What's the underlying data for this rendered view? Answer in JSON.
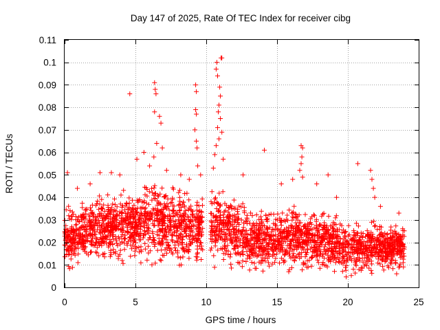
{
  "chart_data": {
    "type": "scatter",
    "title": "Day 147 of 2025, Rate Of TEC Index for receiver cibg",
    "xlabel": "GPS time / hours",
    "ylabel": "ROTI / TECUs",
    "xlim": [
      0,
      25
    ],
    "ylim": [
      0,
      0.11
    ],
    "xticks": [
      "0",
      "5",
      "10",
      "15",
      "20",
      "25"
    ],
    "yticks": [
      "0",
      "0.01",
      "0.02",
      "0.03",
      "0.04",
      "0.05",
      "0.06",
      "0.07",
      "0.08",
      "0.09",
      "0.1",
      "0.11"
    ],
    "grid": true,
    "marker": "+",
    "color": "#ff0000",
    "series": [
      {
        "name": "ROTI",
        "envelope_description": "dense band",
        "band": [
          {
            "x": 0.0,
            "low": 0.008,
            "high": 0.036
          },
          {
            "x": 1.0,
            "low": 0.008,
            "high": 0.038
          },
          {
            "x": 2.0,
            "low": 0.009,
            "high": 0.04
          },
          {
            "x": 3.0,
            "low": 0.01,
            "high": 0.042
          },
          {
            "x": 4.0,
            "low": 0.009,
            "high": 0.044
          },
          {
            "x": 5.0,
            "low": 0.01,
            "high": 0.045
          },
          {
            "x": 6.0,
            "low": 0.01,
            "high": 0.048
          },
          {
            "x": 7.0,
            "low": 0.009,
            "high": 0.046
          },
          {
            "x": 8.0,
            "low": 0.009,
            "high": 0.044
          },
          {
            "x": 9.0,
            "low": 0.008,
            "high": 0.042
          },
          {
            "x": 9.8,
            "low": 0.01,
            "high": 0.044
          },
          {
            "x": 10.5,
            "low": 0.008,
            "high": 0.045
          },
          {
            "x": 11.0,
            "low": 0.008,
            "high": 0.044
          },
          {
            "x": 12.0,
            "low": 0.007,
            "high": 0.04
          },
          {
            "x": 13.0,
            "low": 0.007,
            "high": 0.036
          },
          {
            "x": 14.0,
            "low": 0.007,
            "high": 0.035
          },
          {
            "x": 15.0,
            "low": 0.006,
            "high": 0.034
          },
          {
            "x": 16.0,
            "low": 0.007,
            "high": 0.037
          },
          {
            "x": 17.0,
            "low": 0.006,
            "high": 0.036
          },
          {
            "x": 18.0,
            "low": 0.006,
            "high": 0.035
          },
          {
            "x": 19.0,
            "low": 0.006,
            "high": 0.033
          },
          {
            "x": 19.8,
            "low": 0.004,
            "high": 0.03
          },
          {
            "x": 21.0,
            "low": 0.006,
            "high": 0.028
          },
          {
            "x": 22.0,
            "low": 0.006,
            "high": 0.03
          },
          {
            "x": 23.0,
            "low": 0.006,
            "high": 0.028
          },
          {
            "x": 24.0,
            "low": 0.006,
            "high": 0.029
          }
        ],
        "outliers": [
          {
            "x": 0.2,
            "y": 0.051
          },
          {
            "x": 0.9,
            "y": 0.044
          },
          {
            "x": 1.8,
            "y": 0.046
          },
          {
            "x": 2.5,
            "y": 0.051
          },
          {
            "x": 3.3,
            "y": 0.051
          },
          {
            "x": 3.9,
            "y": 0.05
          },
          {
            "x": 4.6,
            "y": 0.086
          },
          {
            "x": 5.1,
            "y": 0.057
          },
          {
            "x": 5.6,
            "y": 0.06
          },
          {
            "x": 6.0,
            "y": 0.054
          },
          {
            "x": 6.35,
            "y": 0.091
          },
          {
            "x": 6.4,
            "y": 0.088
          },
          {
            "x": 6.45,
            "y": 0.086
          },
          {
            "x": 6.35,
            "y": 0.078
          },
          {
            "x": 6.7,
            "y": 0.076
          },
          {
            "x": 6.8,
            "y": 0.073
          },
          {
            "x": 6.5,
            "y": 0.064
          },
          {
            "x": 6.9,
            "y": 0.062
          },
          {
            "x": 6.3,
            "y": 0.058
          },
          {
            "x": 7.2,
            "y": 0.052
          },
          {
            "x": 8.2,
            "y": 0.05
          },
          {
            "x": 8.8,
            "y": 0.048
          },
          {
            "x": 9.25,
            "y": 0.09
          },
          {
            "x": 9.3,
            "y": 0.087
          },
          {
            "x": 9.25,
            "y": 0.079
          },
          {
            "x": 9.3,
            "y": 0.077
          },
          {
            "x": 9.2,
            "y": 0.07
          },
          {
            "x": 9.3,
            "y": 0.065
          },
          {
            "x": 9.35,
            "y": 0.062
          },
          {
            "x": 9.4,
            "y": 0.054
          },
          {
            "x": 9.6,
            "y": 0.05
          },
          {
            "x": 10.7,
            "y": 0.097
          },
          {
            "x": 10.75,
            "y": 0.1
          },
          {
            "x": 11.05,
            "y": 0.102
          },
          {
            "x": 11.1,
            "y": 0.102
          },
          {
            "x": 10.8,
            "y": 0.094
          },
          {
            "x": 10.95,
            "y": 0.089
          },
          {
            "x": 11.0,
            "y": 0.085
          },
          {
            "x": 10.9,
            "y": 0.081
          },
          {
            "x": 10.85,
            "y": 0.078
          },
          {
            "x": 11.0,
            "y": 0.075
          },
          {
            "x": 10.8,
            "y": 0.071
          },
          {
            "x": 10.9,
            "y": 0.066
          },
          {
            "x": 10.7,
            "y": 0.063
          },
          {
            "x": 11.1,
            "y": 0.069
          },
          {
            "x": 10.6,
            "y": 0.059
          },
          {
            "x": 11.2,
            "y": 0.057
          },
          {
            "x": 10.5,
            "y": 0.053
          },
          {
            "x": 12.6,
            "y": 0.05
          },
          {
            "x": 14.1,
            "y": 0.061
          },
          {
            "x": 15.3,
            "y": 0.046
          },
          {
            "x": 16.1,
            "y": 0.048
          },
          {
            "x": 16.7,
            "y": 0.063
          },
          {
            "x": 16.8,
            "y": 0.062
          },
          {
            "x": 16.75,
            "y": 0.058
          },
          {
            "x": 16.7,
            "y": 0.055
          },
          {
            "x": 16.6,
            "y": 0.052
          },
          {
            "x": 16.8,
            "y": 0.049
          },
          {
            "x": 17.8,
            "y": 0.046
          },
          {
            "x": 18.6,
            "y": 0.05
          },
          {
            "x": 19.2,
            "y": 0.04
          },
          {
            "x": 20.7,
            "y": 0.055
          },
          {
            "x": 21.6,
            "y": 0.052
          },
          {
            "x": 21.7,
            "y": 0.048
          },
          {
            "x": 21.8,
            "y": 0.044
          },
          {
            "x": 21.9,
            "y": 0.04
          },
          {
            "x": 22.3,
            "y": 0.036
          },
          {
            "x": 23.6,
            "y": 0.033
          }
        ]
      }
    ]
  }
}
